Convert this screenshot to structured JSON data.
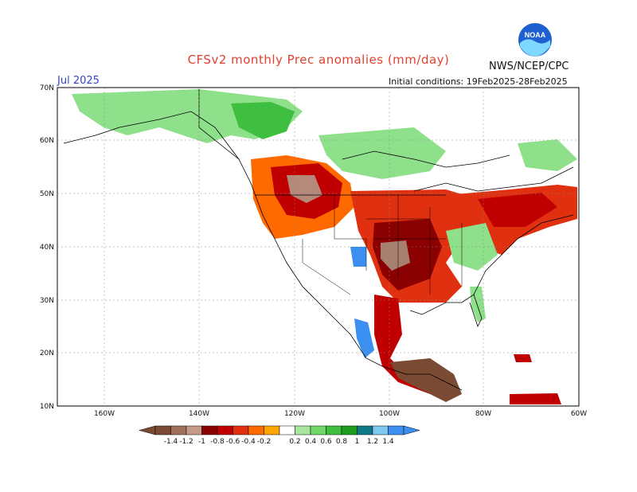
{
  "header": {
    "title": "CFSv2 monthly Prec anomalies (mm/day)",
    "month": "Jul 2025",
    "initial_conditions": "Initial conditions: 19Feb2025-28Feb2025",
    "agency": "NWS/NCEP/CPC",
    "logo_text": "NOAA"
  },
  "axes": {
    "lat_labels": [
      "70N",
      "60N",
      "50N",
      "40N",
      "30N",
      "20N",
      "10N"
    ],
    "lon_labels": [
      "160W",
      "140W",
      "120W",
      "100W",
      "80W",
      "60W"
    ]
  },
  "legend": {
    "labels": [
      "-1.4",
      "-1.2",
      "-1",
      "-0.8",
      "-0.6",
      "-0.4",
      "-0.2",
      "0.2",
      "0.4",
      "0.6",
      "0.8",
      "1",
      "1.2",
      "1.4"
    ],
    "colors": [
      "#7b4a32",
      "#a0705a",
      "#c59a86",
      "#8b0000",
      "#c00000",
      "#e03010",
      "#ff6a00",
      "#ffa500",
      "#ffffff",
      "#a8e6a0",
      "#6fd66a",
      "#3fbf3f",
      "#1e9e1e",
      "#0d7a8a",
      "#7fc8f0",
      "#3a8ff0"
    ]
  },
  "map_regions": [
    {
      "name": "alaska-green",
      "color": "#8fe08a"
    },
    {
      "name": "canada-green",
      "color": "#5fcf5f"
    },
    {
      "name": "pacific-nw-dry",
      "color": "#ff8c1a"
    },
    {
      "name": "rockies-dry-core",
      "color": "#b07a66"
    },
    {
      "name": "plains-dry",
      "color": "#c81e0a"
    },
    {
      "name": "southern-plains-dry",
      "color": "#a00000"
    },
    {
      "name": "mexico-dry",
      "color": "#7b4a32"
    },
    {
      "name": "southwest-wet",
      "color": "#3a8ff0"
    },
    {
      "name": "northeast-dry",
      "color": "#e0301a"
    }
  ]
}
